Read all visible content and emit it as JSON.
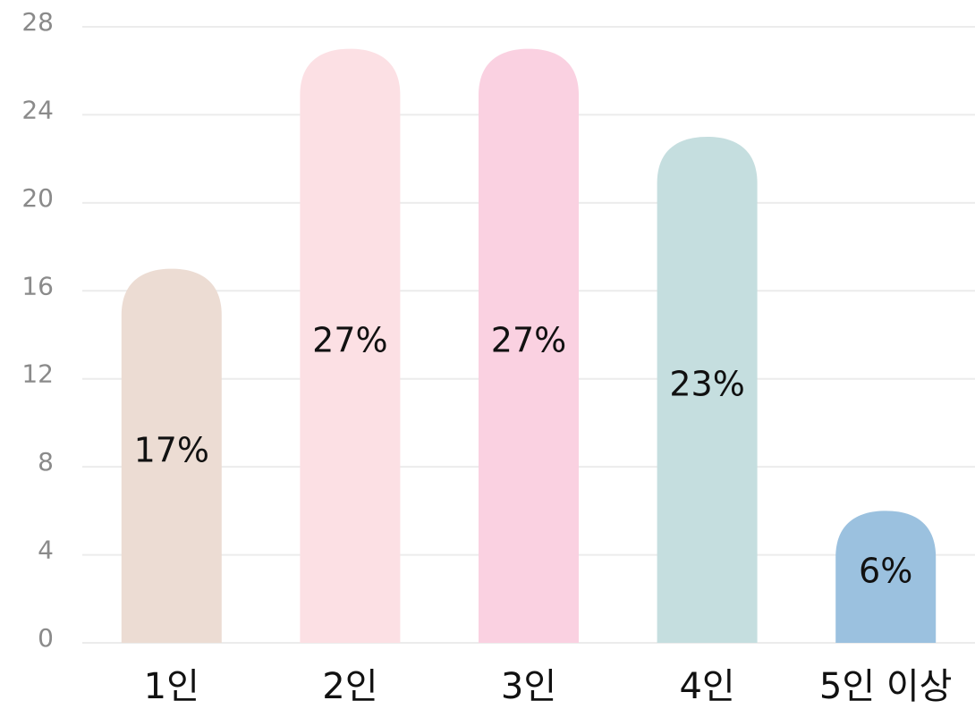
{
  "chart_data": {
    "type": "bar",
    "categories": [
      "1인",
      "2인",
      "3인",
      "4인",
      "5인 이상"
    ],
    "values": [
      17,
      27,
      27,
      23,
      6
    ],
    "value_labels": [
      "17%",
      "27%",
      "27%",
      "23%",
      "6%"
    ],
    "colors": [
      "#ecdcd3",
      "#fce0e4",
      "#fad1e1",
      "#c5dedf",
      "#9bc1df"
    ],
    "ylim": [
      0,
      28
    ],
    "yticks": [
      0,
      4,
      8,
      12,
      16,
      20,
      24,
      28
    ],
    "grid": true
  }
}
